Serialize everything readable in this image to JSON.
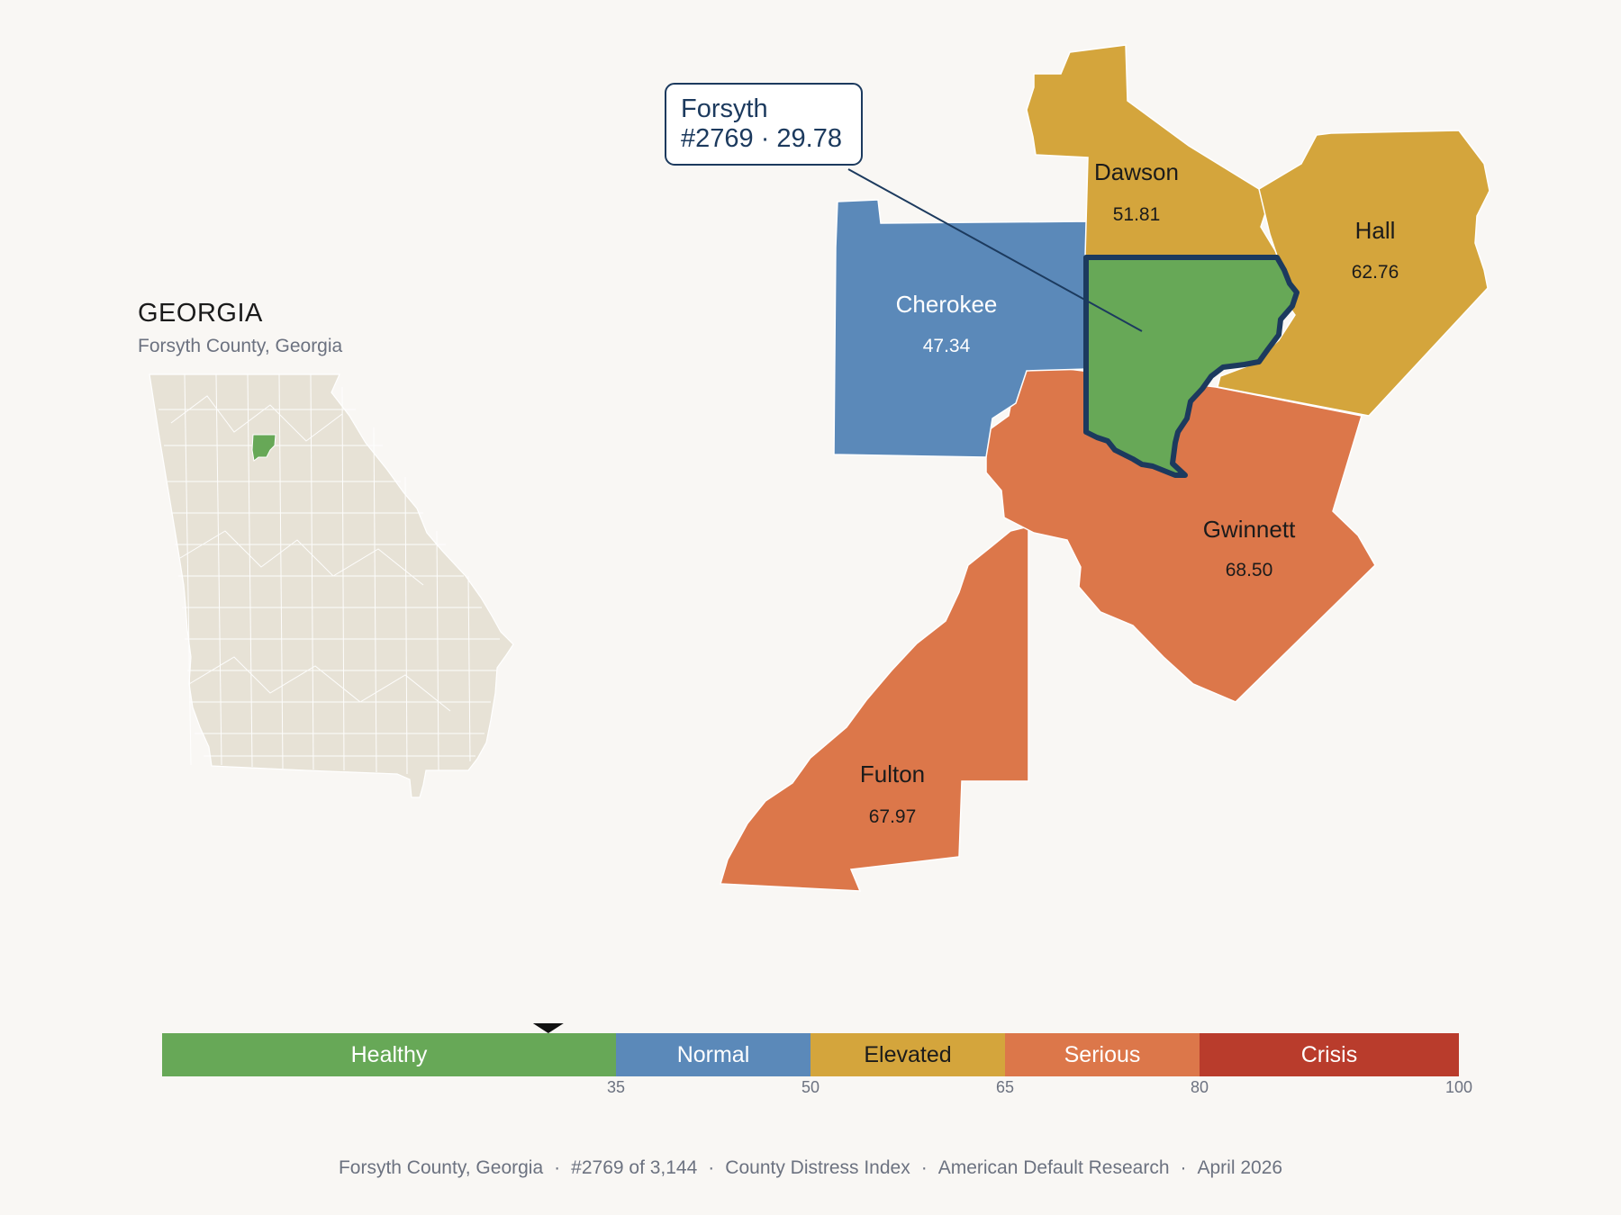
{
  "state": {
    "title": "GEORGIA",
    "subtitle": "Forsyth County, Georgia"
  },
  "callout": {
    "name": "Forsyth",
    "rank_score": "#2769 · 29.78"
  },
  "counties": [
    {
      "id": "dawson",
      "name": "Dawson",
      "score": "51.81",
      "color": "#d4a53c",
      "label_color": "#1b1b1b"
    },
    {
      "id": "hall",
      "name": "Hall",
      "score": "62.76",
      "color": "#d4a53c",
      "label_color": "#1b1b1b"
    },
    {
      "id": "cherokee",
      "name": "Cherokee",
      "score": "47.34",
      "color": "#5b89b9",
      "label_color": "#ffffff"
    },
    {
      "id": "gwinnett",
      "name": "Gwinnett",
      "score": "68.50",
      "color": "#dc774a",
      "label_color": "#1b1b1b"
    },
    {
      "id": "fulton",
      "name": "Fulton",
      "score": "67.97",
      "color": "#dc774a",
      "label_color": "#1b1b1b"
    },
    {
      "id": "forsyth",
      "name": "Forsyth",
      "score": "29.78",
      "color": "#67a857",
      "label_color": "#1b1b1b"
    }
  ],
  "legend": {
    "marker_value": 29.78,
    "scale_max": 100,
    "bands": [
      {
        "label": "Healthy",
        "min": 0,
        "max": 35,
        "color": "#67a857",
        "text_color": "#ffffff"
      },
      {
        "label": "Normal",
        "min": 35,
        "max": 50,
        "color": "#5b89b9",
        "text_color": "#ffffff"
      },
      {
        "label": "Elevated",
        "min": 50,
        "max": 65,
        "color": "#d4a53c",
        "text_color": "#1b1b1b"
      },
      {
        "label": "Serious",
        "min": 65,
        "max": 80,
        "color": "#dc774a",
        "text_color": "#ffffff"
      },
      {
        "label": "Crisis",
        "min": 80,
        "max": 100,
        "color": "#b93c2c",
        "text_color": "#ffffff"
      }
    ],
    "ticks": [
      "35",
      "50",
      "65",
      "80",
      "100"
    ]
  },
  "footer": {
    "county": "Forsyth County, Georgia",
    "rank": "#2769 of 3,144",
    "index": "County Distress Index",
    "source": "American Default Research",
    "date": "April 2026"
  },
  "colors": {
    "background": "#f9f7f4",
    "state_fill": "#e7e2d6",
    "highlight": "#67a857",
    "outline": "#1c3a5e"
  }
}
